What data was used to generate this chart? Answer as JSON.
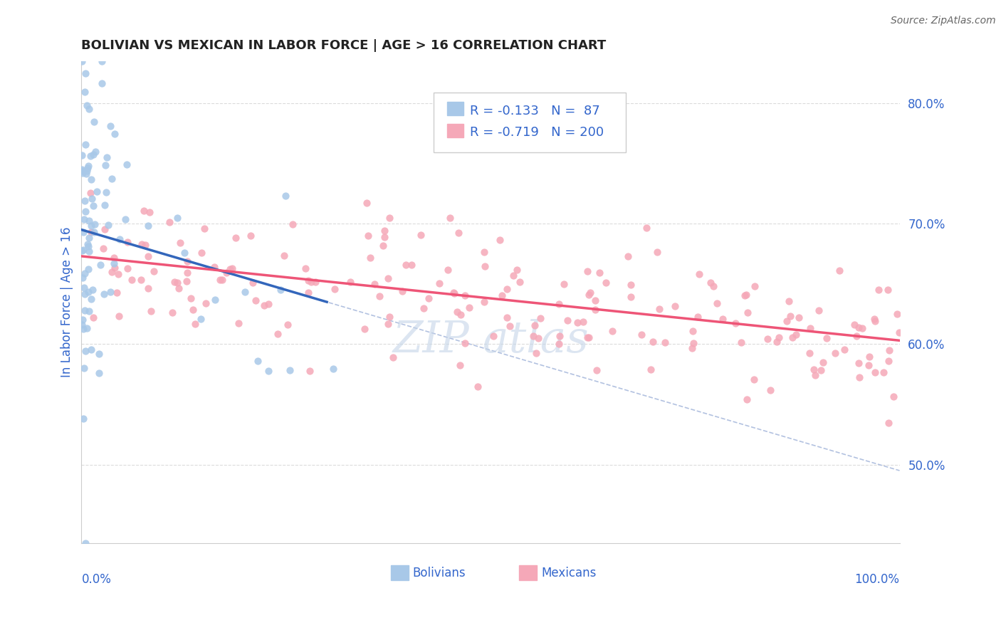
{
  "title": "BOLIVIAN VS MEXICAN IN LABOR FORCE | AGE > 16 CORRELATION CHART",
  "source": "Source: ZipAtlas.com",
  "ylabel": "In Labor Force | Age > 16",
  "ylabel_right_ticks": [
    "80.0%",
    "70.0%",
    "60.0%",
    "50.0%"
  ],
  "ylabel_right_vals": [
    0.8,
    0.7,
    0.6,
    0.5
  ],
  "xlim": [
    0.0,
    1.0
  ],
  "ylim": [
    0.435,
    0.835
  ],
  "R_bolivian": -0.133,
  "N_bolivian": 87,
  "R_mexican": -0.719,
  "N_mexican": 200,
  "bolivian_color": "#a8c8e8",
  "mexican_color": "#f5a8b8",
  "bolivian_line_color": "#3366bb",
  "mexican_line_color": "#ee5577",
  "legend_text_color": "#3366cc",
  "grid_color": "#cccccc",
  "dashed_line_color": "#aabbdd",
  "background_color": "#ffffff",
  "seed": 42,
  "marker_size": 55,
  "bolivian_trend_x0": 0.0,
  "bolivian_trend_y0": 0.695,
  "bolivian_trend_x1": 0.3,
  "bolivian_trend_y1": 0.635,
  "mexican_trend_x0": 0.0,
  "mexican_trend_y0": 0.673,
  "mexican_trend_x1": 1.0,
  "mexican_trend_y1": 0.603
}
